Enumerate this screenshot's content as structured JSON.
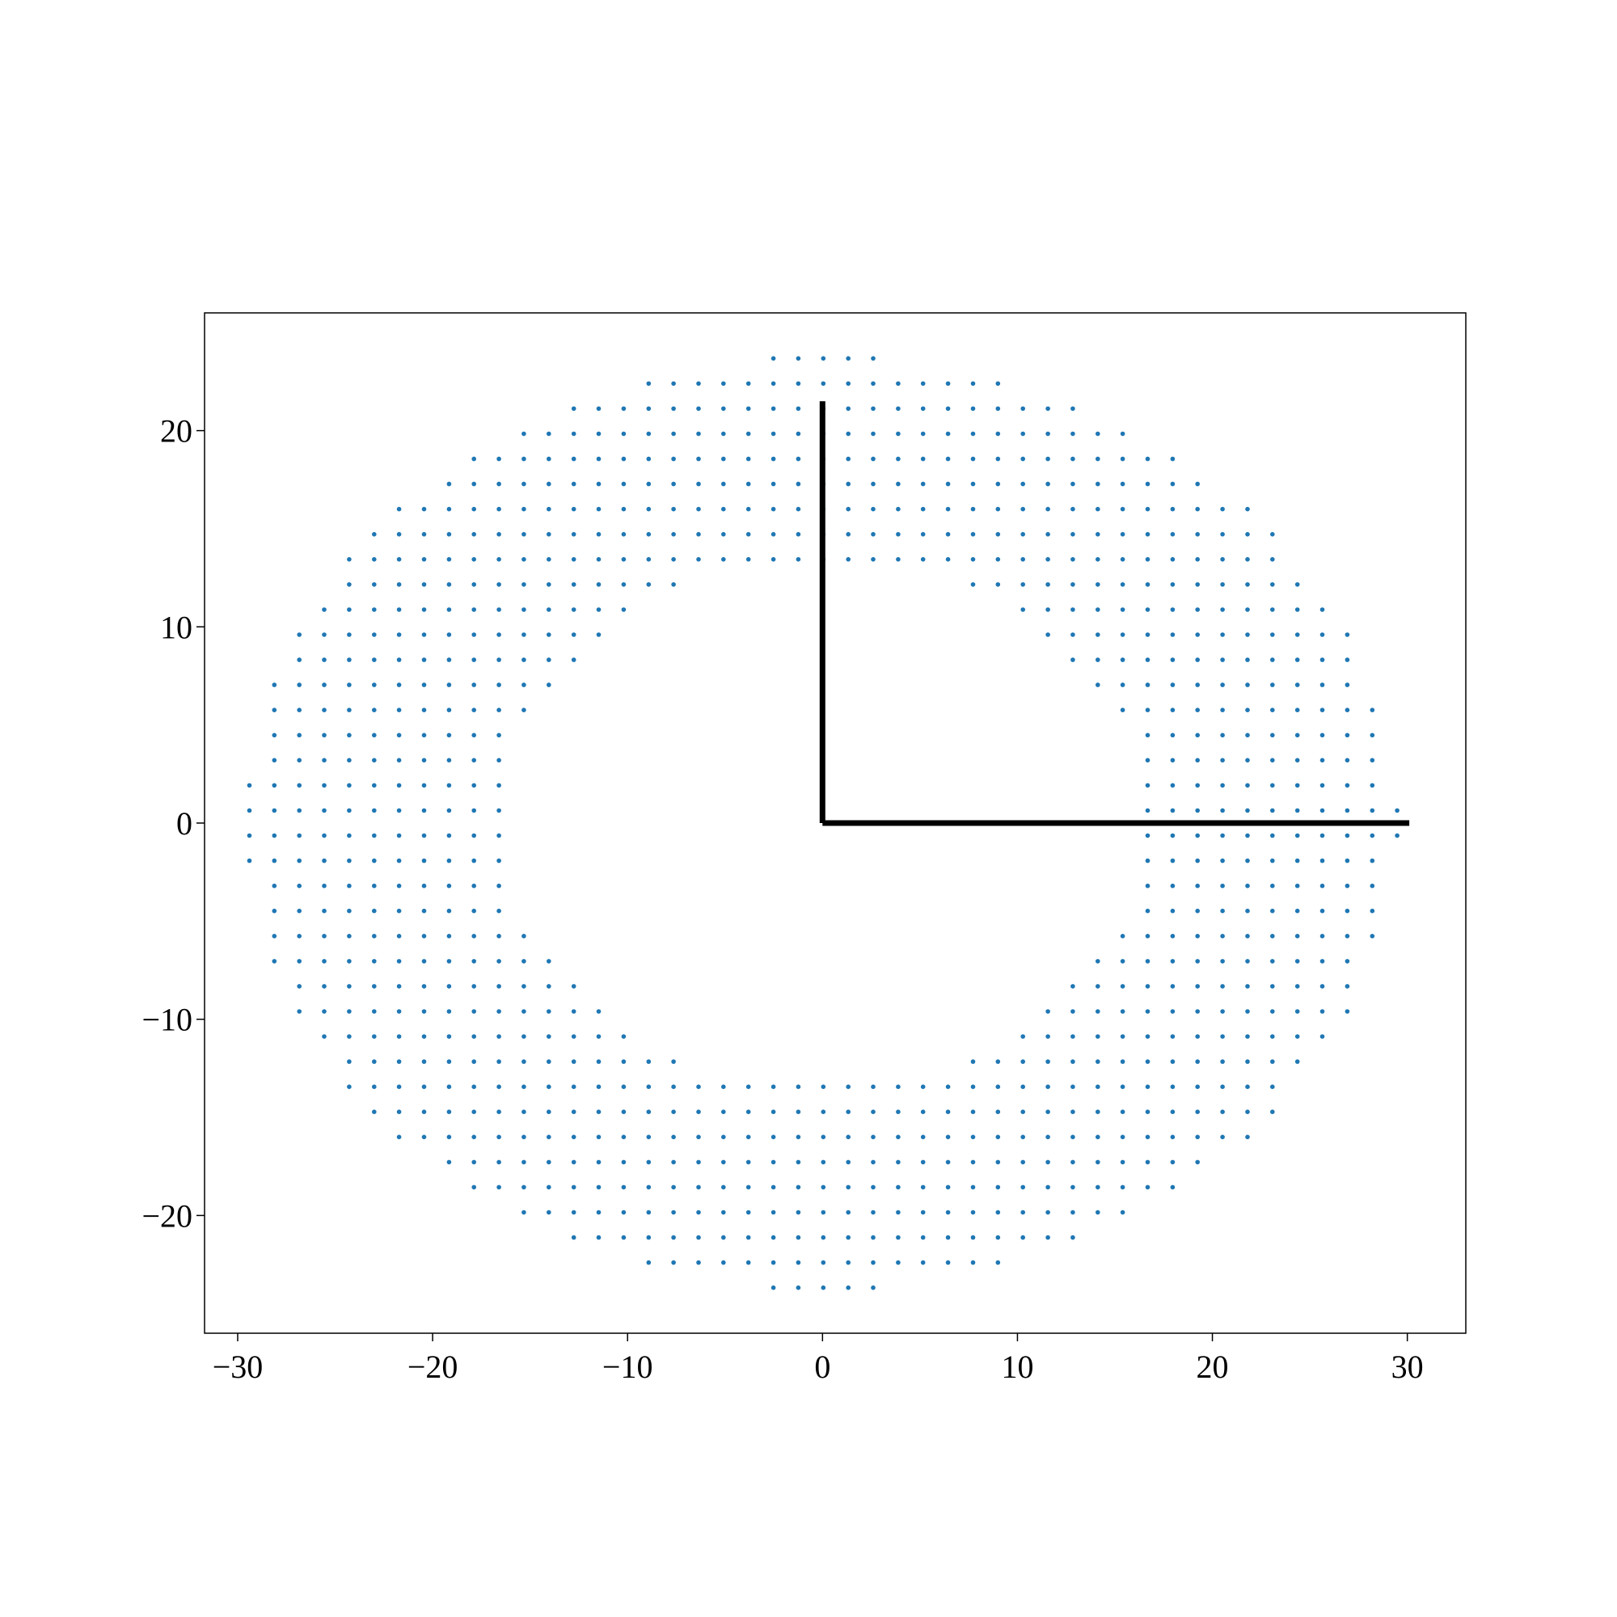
{
  "chart_data": {
    "type": "scatter",
    "title": "",
    "xlabel": "",
    "ylabel": "",
    "xlim": [
      -31.7,
      33
    ],
    "ylim": [
      -26,
      26
    ],
    "grid": false,
    "x_ticks": [
      -30,
      -20,
      -10,
      0,
      10,
      20,
      30
    ],
    "y_ticks": [
      -20,
      -10,
      0,
      10,
      20
    ],
    "x_tick_labels": [
      "−30",
      "−20",
      "−10",
      "0",
      "10",
      "20",
      "30"
    ],
    "y_tick_labels": [
      "−20",
      "−10",
      "0",
      "10",
      "20"
    ],
    "point_grid": {
      "x_spacing": 1.28,
      "y_spacing": 1.28,
      "inner_radius": 16.4,
      "outer_radius": 29.5,
      "y_scale": 1.24,
      "rows": 38
    },
    "lines": [
      {
        "points": [
          [
            0,
            0
          ],
          [
            0,
            21.5
          ]
        ],
        "color": "#000000"
      },
      {
        "points": [
          [
            0,
            0
          ],
          [
            30.1,
            0
          ]
        ],
        "color": "#000000"
      }
    ],
    "colors": {
      "points": "#1f77b4",
      "lines": "#000000",
      "axes": "#000000"
    }
  }
}
